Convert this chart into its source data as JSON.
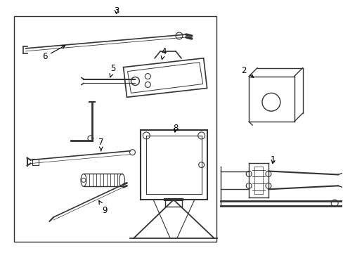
{
  "background_color": "#ffffff",
  "line_color": "#333333",
  "text_color": "#000000",
  "figsize": [
    4.89,
    3.6
  ],
  "dpi": 100
}
